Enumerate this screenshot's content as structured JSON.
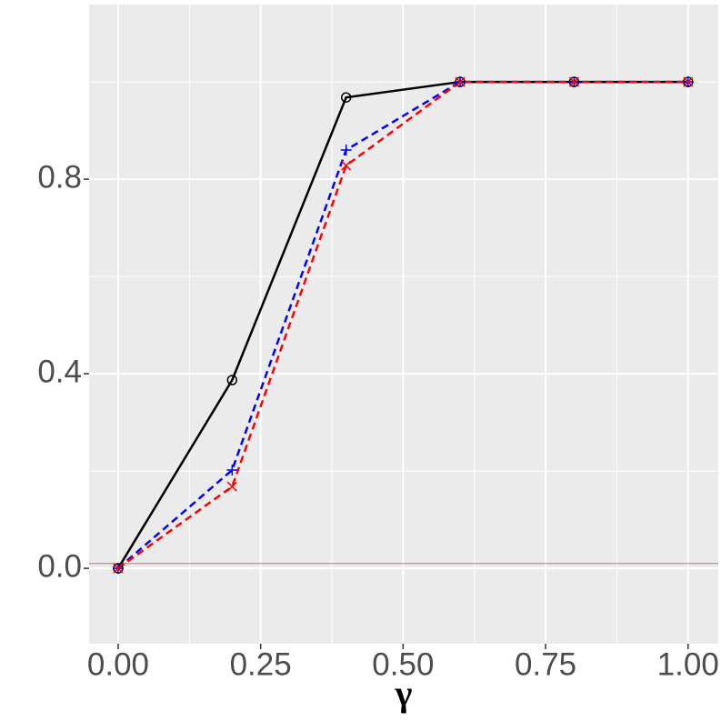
{
  "chart_data": {
    "type": "line",
    "xlabel": "γ",
    "x": [
      0,
      0.2,
      0.4,
      0.6,
      0.8,
      1.0
    ],
    "series": [
      {
        "color": "#000000",
        "marker": "circle",
        "dash": "solid",
        "values": [
          0,
          0.387,
          0.968,
          1,
          1,
          1
        ]
      },
      {
        "color": "#0000ff",
        "marker": "plus",
        "dash": "dashed",
        "values": [
          0,
          0.202,
          0.86,
          1,
          1,
          1
        ]
      },
      {
        "color": "#ff0000",
        "marker": "cross",
        "dash": "dashed",
        "values": [
          0,
          0.168,
          0.828,
          1,
          1,
          1
        ]
      }
    ],
    "xlim": [
      -0.051,
      1.053
    ],
    "ylim": [
      -0.155,
      1.159
    ],
    "xticks": [
      {
        "value": 0,
        "label": "0.00"
      },
      {
        "value": 0.25,
        "label": "0.25"
      },
      {
        "value": 0.5,
        "label": "0.50"
      },
      {
        "value": 0.75,
        "label": "0.75"
      },
      {
        "value": 1,
        "label": "1.00"
      }
    ],
    "yticks": [
      {
        "value": 0,
        "label": "0.0"
      },
      {
        "value": 0.4,
        "label": "0.4"
      },
      {
        "value": 0.8,
        "label": "0.8"
      }
    ],
    "minor_xticks": [
      0.125,
      0.375,
      0.625,
      0.875
    ],
    "minor_yticks": [
      0.2,
      0.6,
      1.0
    ],
    "hline": {
      "value": 0.01,
      "color": "#e06666"
    },
    "grid": true,
    "background": "#ebebeb"
  }
}
